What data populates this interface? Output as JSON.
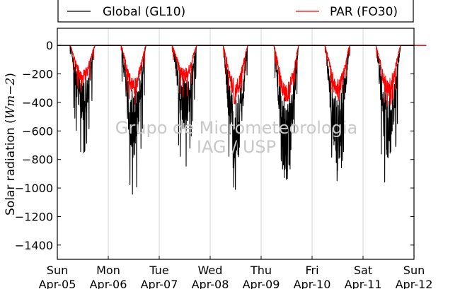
{
  "chart_data": {
    "type": "line",
    "ylabel_text": "Solar radiation (",
    "ylabel_units": "Wm",
    "ylabel_exponent": "−2",
    "ylabel_close": ")",
    "ylim": [
      -1500,
      120
    ],
    "yticks": [
      0,
      -200,
      -400,
      -600,
      -800,
      -1000,
      -1200,
      -1400
    ],
    "ytick_labels": [
      "0",
      "−200",
      "−400",
      "−600",
      "−800",
      "−1000",
      "−1200",
      "−1400"
    ],
    "xlim": [
      0,
      7
    ],
    "xticks": [
      {
        "day": "Sun",
        "date": "Apr-05"
      },
      {
        "day": "Mon",
        "date": "Apr-06"
      },
      {
        "day": "Tue",
        "date": "Apr-07"
      },
      {
        "day": "Wed",
        "date": "Apr-08"
      },
      {
        "day": "Thu",
        "date": "Apr-09"
      },
      {
        "day": "Fri",
        "date": "Apr-10"
      },
      {
        "day": "Sat",
        "date": "Apr-11"
      },
      {
        "day": "Sun",
        "date": "Apr-12"
      }
    ],
    "grid": "vertical",
    "legend_position": "top",
    "watermark": [
      "Grupo de Micrometeorologia",
      "IAG / USP"
    ],
    "series": [
      {
        "name": "Global (GL10)",
        "color": "#000000",
        "daily": [
          {
            "rise": 0.25,
            "set": 0.74,
            "peak": -760,
            "noon_value": -500
          },
          {
            "rise": 0.25,
            "set": 0.74,
            "peak": -1050,
            "noon_value": -700
          },
          {
            "rise": 0.25,
            "set": 0.74,
            "peak": -860,
            "noon_value": -520
          },
          {
            "rise": 0.25,
            "set": 0.74,
            "peak": -1010,
            "noon_value": -800
          },
          {
            "rise": 0.25,
            "set": 0.74,
            "peak": -940,
            "noon_value": -850
          },
          {
            "rise": 0.25,
            "set": 0.74,
            "peak": -950,
            "noon_value": -780
          },
          {
            "rise": 0.25,
            "set": 0.74,
            "peak": -1030,
            "noon_value": -720
          }
        ]
      },
      {
        "name": "PAR (FO30)",
        "color": "#ff0000",
        "daily": [
          {
            "rise": 0.25,
            "set": 0.74,
            "peak": -330,
            "noon_value": -250
          },
          {
            "rise": 0.25,
            "set": 0.74,
            "peak": -420,
            "noon_value": -320
          },
          {
            "rise": 0.25,
            "set": 0.74,
            "peak": -370,
            "noon_value": -230
          },
          {
            "rise": 0.25,
            "set": 0.74,
            "peak": -410,
            "noon_value": -340
          },
          {
            "rise": 0.25,
            "set": 0.74,
            "peak": -390,
            "noon_value": -380
          },
          {
            "rise": 0.25,
            "set": 0.74,
            "peak": -390,
            "noon_value": -330
          },
          {
            "rise": 0.25,
            "set": 0.74,
            "peak": -430,
            "noon_value": -330
          }
        ]
      }
    ]
  }
}
